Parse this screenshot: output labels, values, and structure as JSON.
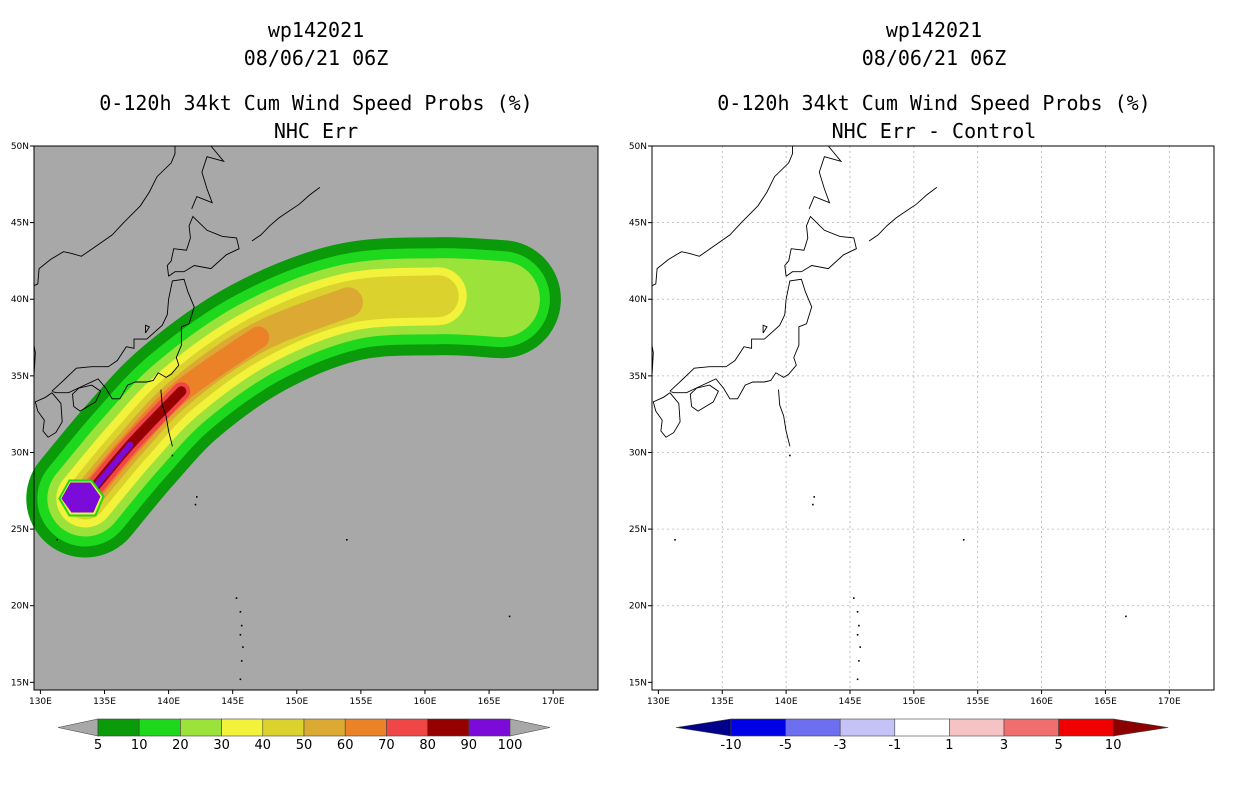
{
  "chart_data": [
    {
      "type": "heatmap",
      "storm_id": "wp142021",
      "datetime": "08/06/21 06Z",
      "title": "0-120h 34kt Cum Wind Speed Probs (%)",
      "subtitle": "NHC Err",
      "xlim": [
        129.5,
        173.5
      ],
      "ylim": [
        14.5,
        50
      ],
      "x_ticks": [
        "130E",
        "135E",
        "140E",
        "145E",
        "150E",
        "155E",
        "160E",
        "165E",
        "170E"
      ],
      "y_ticks": [
        "15N",
        "20N",
        "25N",
        "30N",
        "35N",
        "40N",
        "45N",
        "50N"
      ],
      "grid": false,
      "background_color": "#a8a8a8",
      "colorbar_labels": [
        "5",
        "10",
        "20",
        "30",
        "40",
        "50",
        "60",
        "70",
        "80",
        "90",
        "100"
      ],
      "colorbar_colors": [
        "#0a9a0a",
        "#1ed81e",
        "#9be23a",
        "#f2f23a",
        "#dcd22d",
        "#dcaa32",
        "#ec8228",
        "#f04646",
        "#960000",
        "#7c0ad8"
      ],
      "contour_levels": [
        5,
        10,
        20,
        30,
        40,
        50,
        60,
        70,
        80,
        90,
        100
      ],
      "storm_track": [
        {
          "lon": 133.5,
          "lat": 27.0
        },
        {
          "lon": 137.0,
          "lat": 30.5
        },
        {
          "lon": 141.0,
          "lat": 34.0
        },
        {
          "lon": 147.0,
          "lat": 37.5
        },
        {
          "lon": 154.0,
          "lat": 39.8
        },
        {
          "lon": 161.0,
          "lat": 40.2
        },
        {
          "lon": 166.0,
          "lat": 40.0
        }
      ]
    },
    {
      "type": "heatmap",
      "storm_id": "wp142021",
      "datetime": "08/06/21 06Z",
      "title": "0-120h 34kt Cum Wind Speed Probs (%)",
      "subtitle": "NHC Err - Control",
      "xlim": [
        129.5,
        173.5
      ],
      "ylim": [
        14.5,
        50
      ],
      "x_ticks": [
        "130E",
        "135E",
        "140E",
        "145E",
        "150E",
        "155E",
        "160E",
        "165E",
        "170E"
      ],
      "y_ticks": [
        "15N",
        "20N",
        "25N",
        "30N",
        "35N",
        "40N",
        "45N",
        "50N"
      ],
      "grid": true,
      "background_color": "#ffffff",
      "colorbar_labels": [
        "-10",
        "-5",
        "-3",
        "-1",
        "1",
        "3",
        "5",
        "10"
      ],
      "colorbar_colors": [
        "#00008c",
        "#0000e6",
        "#6e6ef0",
        "#c3c3f5",
        "#ffffff",
        "#f5c3c3",
        "#f06e6e",
        "#f00000",
        "#8c0000"
      ],
      "field_values": "all differences between -1 and 1 (no shading)"
    }
  ]
}
